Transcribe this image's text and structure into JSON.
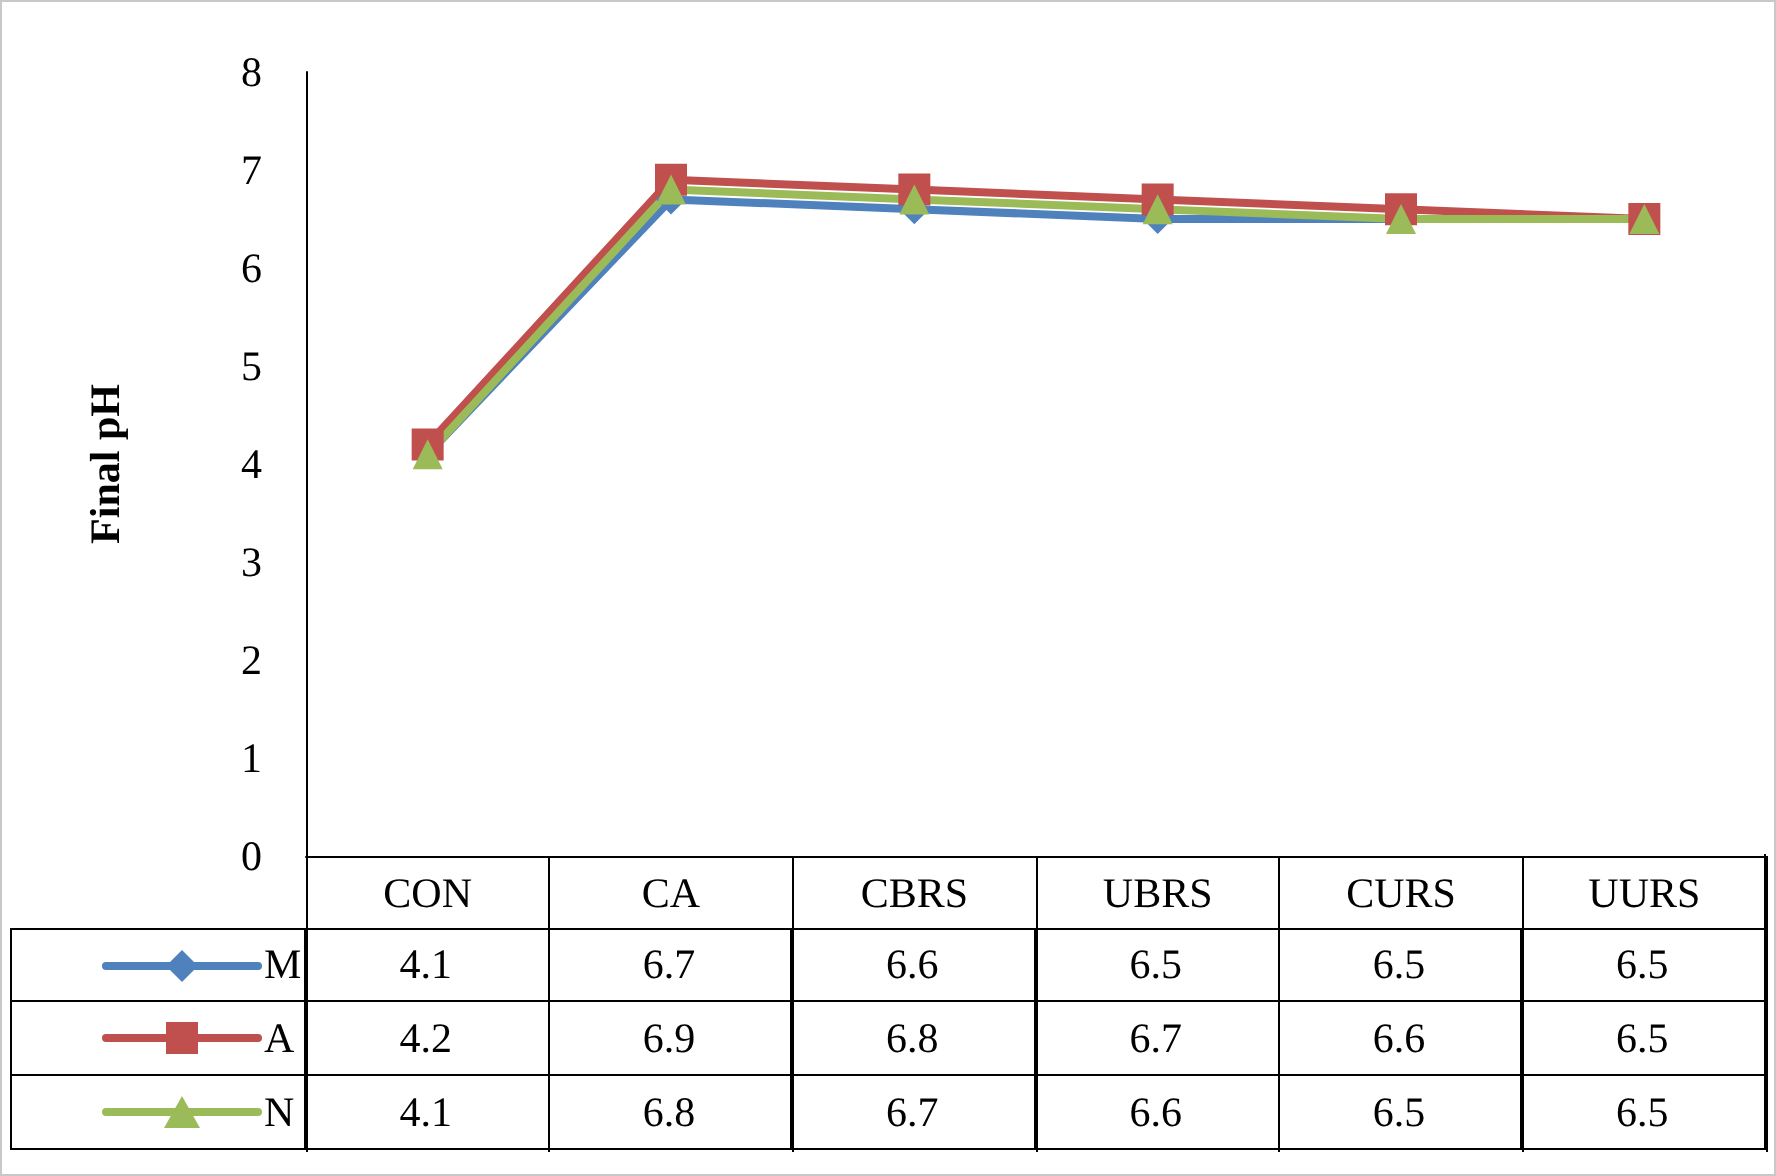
{
  "chart_data": {
    "type": "line",
    "ylabel": "Final pH",
    "categories": [
      "CON",
      "CA",
      "CBRS",
      "UBRS",
      "CURS",
      "UURS"
    ],
    "series": [
      {
        "name": "M",
        "color": "#4f81bd",
        "marker": "diamond",
        "values": [
          4.1,
          6.7,
          6.6,
          6.5,
          6.5,
          6.5
        ]
      },
      {
        "name": "A",
        "color": "#c0504d",
        "marker": "square",
        "values": [
          4.2,
          6.9,
          6.8,
          6.7,
          6.6,
          6.5
        ]
      },
      {
        "name": "N",
        "color": "#9bbb59",
        "marker": "triangle",
        "values": [
          4.1,
          6.8,
          6.7,
          6.6,
          6.5,
          6.5
        ]
      }
    ],
    "ylim": [
      0,
      8
    ],
    "yticks": [
      0,
      1,
      2,
      3,
      4,
      5,
      6,
      7,
      8
    ],
    "grid": false,
    "legend": "bottom left",
    "data_labels": true,
    "line_style": "solid"
  }
}
